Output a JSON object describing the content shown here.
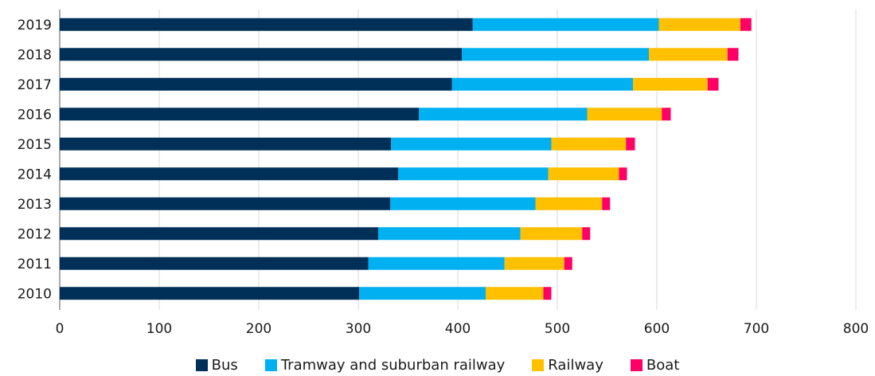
{
  "chart_data": {
    "type": "bar",
    "orientation": "horizontal",
    "stacked": true,
    "title": "",
    "xlabel": "",
    "ylabel": "",
    "xlim": [
      0,
      800
    ],
    "xticks": [
      0,
      100,
      200,
      300,
      400,
      500,
      600,
      700,
      800
    ],
    "grid": "vertical",
    "legend_position": "bottom",
    "categories": [
      "2019",
      "2018",
      "2017",
      "2016",
      "2015",
      "2014",
      "2013",
      "2012",
      "2011",
      "2010"
    ],
    "series": [
      {
        "name": "Bus",
        "color": "#003057",
        "values": [
          415,
          404,
          394,
          361,
          333,
          340,
          332,
          320,
          310,
          301
        ]
      },
      {
        "name": "Tramway and suburban railway",
        "color": "#00b0f0",
        "values": [
          187,
          188,
          182,
          169,
          161,
          151,
          146,
          143,
          137,
          127
        ]
      },
      {
        "name": "Railway",
        "color": "#ffc000",
        "values": [
          82,
          79,
          75,
          75,
          75,
          71,
          67,
          62,
          60,
          58
        ]
      },
      {
        "name": "Boat",
        "color": "#ff0066",
        "values": [
          11,
          11,
          11,
          9,
          9,
          8,
          8,
          8,
          8,
          8
        ]
      }
    ]
  }
}
